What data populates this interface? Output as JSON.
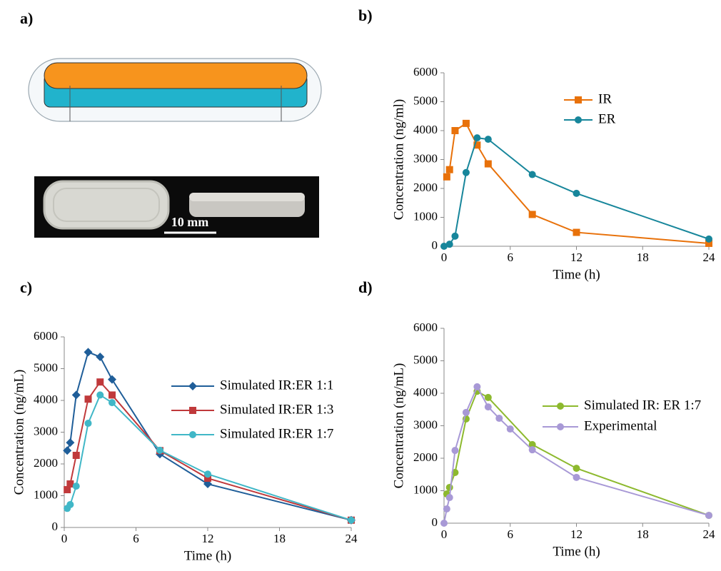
{
  "panels": {
    "a": "a)",
    "b": "b)",
    "c": "c)",
    "d": "d)"
  },
  "scale_bar": "10 mm",
  "chart_data": [
    {
      "type": "line",
      "xlabel": "Time (h)",
      "ylabel": "Concentration (ng/ml)",
      "xlim": [
        0,
        24
      ],
      "xticks": [
        0,
        6,
        12,
        18,
        24
      ],
      "ylim": [
        0,
        6000
      ],
      "yticks": [
        0,
        1000,
        2000,
        3000,
        4000,
        5000,
        6000
      ],
      "series": [
        {
          "name": "IR",
          "color": "#e8710a",
          "marker": "square",
          "x": [
            0.25,
            0.5,
            1,
            2,
            3,
            4,
            8,
            12,
            24
          ],
          "values": [
            2400,
            2650,
            4000,
            4250,
            3500,
            2850,
            1100,
            480,
            100
          ]
        },
        {
          "name": "ER",
          "color": "#17869b",
          "marker": "circle",
          "x": [
            0,
            0.5,
            1,
            2,
            3,
            4,
            8,
            12,
            24
          ],
          "values": [
            0,
            70,
            350,
            2550,
            3750,
            3700,
            2480,
            1830,
            250
          ]
        }
      ]
    },
    {
      "type": "line",
      "xlabel": "Time (h)",
      "ylabel": "Concentration (ng/mL)",
      "xlim": [
        0,
        24
      ],
      "xticks": [
        0,
        6,
        12,
        18,
        24
      ],
      "ylim": [
        0,
        6000
      ],
      "yticks": [
        0,
        1000,
        2000,
        3000,
        4000,
        5000,
        6000
      ],
      "series": [
        {
          "name": "Simulated IR:ER 1:1",
          "color": "#1f5e99",
          "marker": "diamond",
          "x": [
            0.25,
            0.5,
            1,
            2,
            3,
            4,
            8,
            12,
            24
          ],
          "values": [
            2420,
            2670,
            4170,
            5520,
            5370,
            4660,
            2310,
            1370,
            230
          ]
        },
        {
          "name": "Simulated IR:ER 1:3",
          "color": "#c0393b",
          "marker": "square",
          "x": [
            0.25,
            0.5,
            1,
            2,
            3,
            4,
            8,
            12,
            24
          ],
          "values": [
            1190,
            1370,
            2270,
            4040,
            4580,
            4170,
            2420,
            1550,
            230
          ]
        },
        {
          "name": "Simulated IR:ER 1:7",
          "color": "#40b7c7",
          "marker": "circle",
          "x": [
            0.25,
            0.5,
            1,
            2,
            3,
            4,
            8,
            12,
            24
          ],
          "values": [
            600,
            720,
            1300,
            3280,
            4170,
            3930,
            2430,
            1680,
            230
          ]
        }
      ]
    },
    {
      "type": "line",
      "xlabel": "Time (h)",
      "ylabel": "Concentration (ng/mL)",
      "xlim": [
        0,
        24
      ],
      "xticks": [
        0,
        6,
        12,
        18,
        24
      ],
      "ylim": [
        0,
        6000
      ],
      "yticks": [
        0,
        1000,
        2000,
        3000,
        4000,
        5000,
        6000
      ],
      "series": [
        {
          "name": "Simulated IR: ER 1:7",
          "color": "#8db92e",
          "marker": "circle",
          "x": [
            0.25,
            0.5,
            1,
            2,
            3,
            4,
            8,
            12,
            24
          ],
          "values": [
            900,
            1100,
            1560,
            3210,
            4060,
            3870,
            2420,
            1690,
            240
          ]
        },
        {
          "name": "Experimental",
          "color": "#a899d6",
          "marker": "circle",
          "x": [
            0,
            0.25,
            0.5,
            1,
            2,
            3,
            4,
            5,
            6,
            8,
            12,
            24
          ],
          "values": [
            0,
            440,
            790,
            2240,
            3410,
            4200,
            3580,
            3230,
            2900,
            2260,
            1410,
            240
          ]
        }
      ]
    }
  ]
}
